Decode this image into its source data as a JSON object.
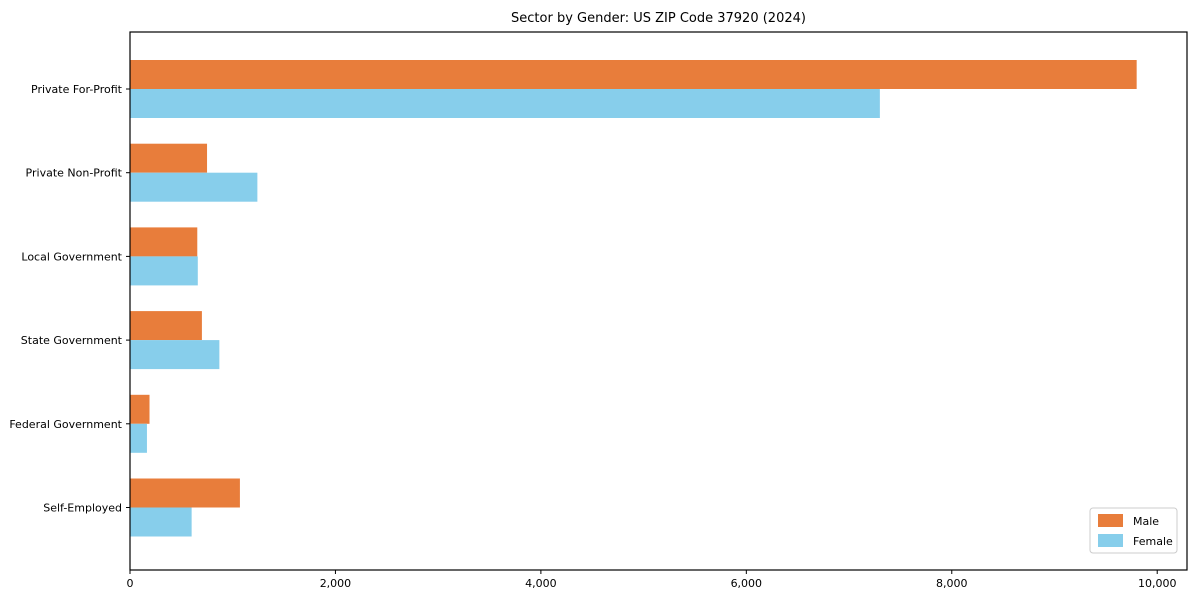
{
  "figure": {
    "background": "#ffffff"
  },
  "chart_data": {
    "type": "bar",
    "orientation": "horizontal",
    "title": "Sector by Gender: US ZIP Code 37920 (2024)",
    "xlabel": "",
    "ylabel": "",
    "categories": [
      "Private For-Profit",
      "Private Non-Profit",
      "Local Government",
      "State Government",
      "Federal Government",
      "Self-Employed"
    ],
    "series": [
      {
        "name": "Male",
        "color": "#e87d3b",
        "values": [
          9800,
          750,
          655,
          700,
          190,
          1070
        ]
      },
      {
        "name": "Female",
        "color": "#87ceeb",
        "values": [
          7300,
          1240,
          660,
          870,
          165,
          600
        ]
      }
    ],
    "xlim": [
      0,
      10290
    ],
    "xticks": [
      0,
      2000,
      4000,
      6000,
      8000,
      10000
    ],
    "xtick_labels": [
      "0",
      "2,000",
      "4,000",
      "6,000",
      "8,000",
      "10,000"
    ],
    "grid": false,
    "legend": {
      "position": "lower right",
      "labels": [
        "Male",
        "Female"
      ],
      "border_color": "#cccccc",
      "background": "#ffffff"
    },
    "axis_color": "#000000",
    "plot_background": "#ffffff"
  }
}
